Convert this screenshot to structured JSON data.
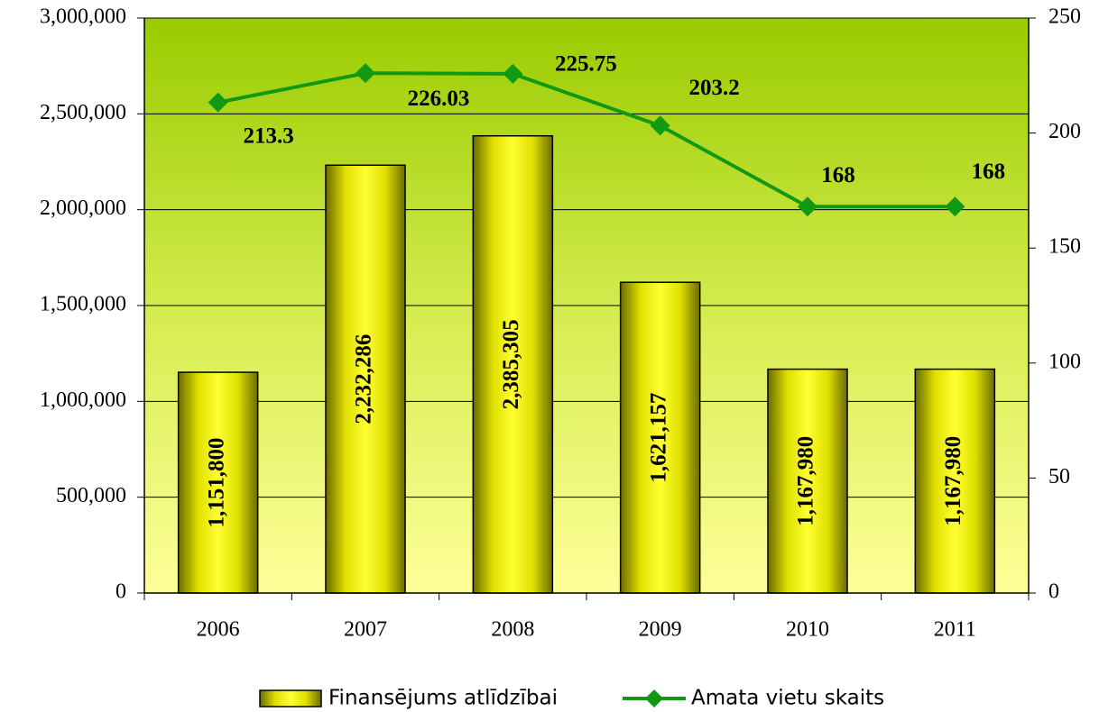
{
  "chart_data": {
    "type": "bar_line",
    "categories": [
      "2006",
      "2007",
      "2008",
      "2009",
      "2010",
      "2011"
    ],
    "series": [
      {
        "name": "Finansējums atlīdzībai",
        "type": "bar",
        "color": "#ffff00",
        "values": [
          1151800,
          2232286,
          2385305,
          1621157,
          1167980,
          1167980
        ],
        "value_labels": [
          "1,151,800",
          "2,232,286",
          "2,385,305",
          "1,621,157",
          "1,167,980",
          "1,167,980"
        ]
      },
      {
        "name": "Amata vietu skaits",
        "type": "line",
        "axis": "y2",
        "color": "#129912",
        "values": [
          213.3,
          226.03,
          225.75,
          203.2,
          168,
          168
        ]
      }
    ],
    "ylim": [
      0,
      3000000
    ],
    "yticks": [
      0,
      {
        "value": 500000,
        "label": "500,000"
      },
      {
        "value": 1000000,
        "label": "1,000,000"
      },
      {
        "value": 1500000,
        "label": "1,500,000"
      },
      {
        "value": 2000000,
        "label": "2,000,000"
      },
      {
        "value": 2500000,
        "label": "2,500,000"
      },
      {
        "value": 3000000,
        "label": "3,000,000"
      }
    ],
    "y2lim": [
      0,
      250
    ],
    "y2ticks": [
      0,
      50,
      100,
      150,
      200,
      250
    ],
    "grid": true,
    "legend": "bottom"
  }
}
